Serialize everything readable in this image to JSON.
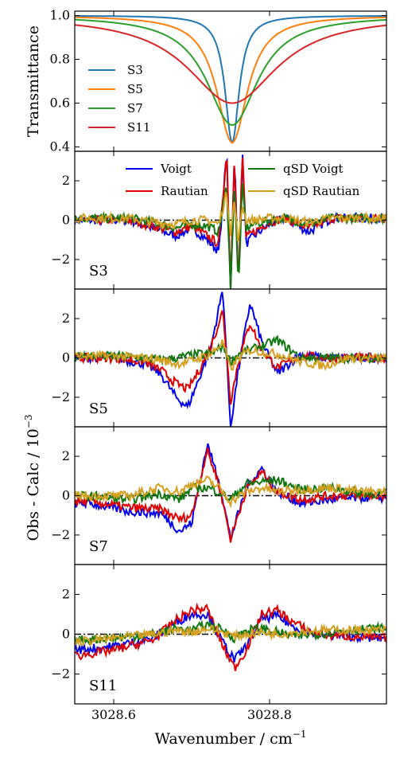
{
  "chart_data": [
    {
      "type": "line",
      "panel": "transmittance",
      "ylabel": "Transmittance",
      "ylim": [
        0.38,
        1.02
      ],
      "xlim": [
        3028.55,
        3028.95
      ],
      "yticks": [
        "0.4",
        "0.6",
        "0.8",
        "1.0"
      ],
      "ytick_values": [
        0.4,
        0.6,
        0.8,
        1.0
      ],
      "legend_position": "left",
      "center": 3028.752,
      "series": [
        {
          "name": "S3",
          "color": "#1f77b4",
          "min_transmittance": 0.42,
          "width": 0.011
        },
        {
          "name": "S5",
          "color": "#ff7f0e",
          "min_transmittance": 0.42,
          "width": 0.024
        },
        {
          "name": "S7",
          "color": "#2ca02c",
          "min_transmittance": 0.5,
          "width": 0.04
        },
        {
          "name": "S11",
          "color": "#d62728",
          "min_transmittance": 0.6,
          "width": 0.07
        }
      ]
    },
    {
      "type": "line",
      "panel": "S3",
      "label": "S3",
      "ylim": [
        -3.5,
        3.5
      ],
      "yticks": [
        "2",
        "0",
        "−2"
      ],
      "ytick_values": [
        2,
        0,
        -2
      ],
      "legend_position": "top",
      "series": [
        {
          "name": "Voigt",
          "color": "#0000ee",
          "x": [
            3028.62,
            3028.65,
            3028.68,
            3028.7,
            3028.72,
            3028.735,
            3028.745,
            3028.75,
            3028.755,
            3028.76,
            3028.765,
            3028.77,
            3028.78,
            3028.8,
            3028.82,
            3028.85,
            3028.88
          ],
          "values": [
            0.0,
            -0.4,
            -0.8,
            -0.4,
            -1.0,
            -1.6,
            3.5,
            -3.5,
            3.5,
            -3.5,
            3.5,
            -1.2,
            -0.8,
            -0.2,
            0.1,
            -0.6,
            0.1
          ]
        },
        {
          "name": "Rautian",
          "color": "#e00000",
          "x": [
            3028.62,
            3028.65,
            3028.68,
            3028.7,
            3028.72,
            3028.735,
            3028.745,
            3028.75,
            3028.755,
            3028.76,
            3028.765,
            3028.77,
            3028.78,
            3028.8,
            3028.82,
            3028.85,
            3028.88
          ],
          "values": [
            0.0,
            -0.3,
            -0.6,
            -0.3,
            -0.8,
            -1.2,
            3.5,
            -3.5,
            3.5,
            -3.5,
            3.5,
            -0.9,
            -0.6,
            -0.1,
            0.1,
            -0.4,
            0.1
          ]
        },
        {
          "name": "qSD Voigt",
          "color": "#117711",
          "x": [
            3028.62,
            3028.65,
            3028.68,
            3028.7,
            3028.72,
            3028.735,
            3028.745,
            3028.75,
            3028.755,
            3028.76,
            3028.765,
            3028.77,
            3028.78,
            3028.8,
            3028.82,
            3028.85,
            3028.88
          ],
          "values": [
            0.1,
            -0.1,
            -0.4,
            -0.2,
            -0.3,
            -0.6,
            1.8,
            -3.5,
            2.0,
            -3.5,
            1.8,
            -0.4,
            -0.2,
            0.0,
            0.1,
            -0.2,
            0.1
          ]
        },
        {
          "name": "qSD Rautian",
          "color": "#d4a020",
          "x": [
            3028.62,
            3028.65,
            3028.68,
            3028.7,
            3028.72,
            3028.735,
            3028.745,
            3028.75,
            3028.755,
            3028.76,
            3028.765,
            3028.77,
            3028.78,
            3028.8,
            3028.82,
            3028.85,
            3028.88
          ],
          "values": [
            0.1,
            -0.1,
            -0.2,
            0.0,
            0.0,
            -0.2,
            1.4,
            -0.6,
            1.0,
            -1.2,
            0.8,
            0.0,
            0.0,
            0.1,
            0.1,
            -0.1,
            0.1
          ]
        }
      ]
    },
    {
      "type": "line",
      "panel": "S5",
      "label": "S5",
      "ylim": [
        -3.5,
        3.5
      ],
      "yticks": [
        "2",
        "0",
        "−2"
      ],
      "ytick_values": [
        2,
        0,
        -2
      ],
      "series": [
        {
          "name": "Voigt",
          "color": "#0000ee",
          "x": [
            3028.6,
            3028.64,
            3028.66,
            3028.68,
            3028.695,
            3028.71,
            3028.725,
            3028.74,
            3028.75,
            3028.76,
            3028.775,
            3028.79,
            3028.81,
            3028.84,
            3028.87,
            3028.9
          ],
          "values": [
            0.0,
            -0.3,
            -0.8,
            -2.0,
            -2.5,
            -1.0,
            0.6,
            3.5,
            -3.5,
            -0.6,
            2.8,
            0.8,
            -0.8,
            0.2,
            0.0,
            0.0
          ]
        },
        {
          "name": "Rautian",
          "color": "#e00000",
          "x": [
            3028.6,
            3028.64,
            3028.66,
            3028.68,
            3028.695,
            3028.71,
            3028.725,
            3028.74,
            3028.75,
            3028.76,
            3028.775,
            3028.79,
            3028.81,
            3028.84,
            3028.87,
            3028.9
          ],
          "values": [
            0.0,
            -0.2,
            -0.6,
            -1.3,
            -1.6,
            -0.6,
            0.6,
            2.4,
            -2.2,
            -0.2,
            1.8,
            0.4,
            -0.5,
            0.1,
            0.0,
            0.0
          ]
        },
        {
          "name": "qSD Voigt",
          "color": "#117711",
          "x": [
            3028.6,
            3028.64,
            3028.66,
            3028.68,
            3028.695,
            3028.71,
            3028.725,
            3028.74,
            3028.75,
            3028.76,
            3028.775,
            3028.79,
            3028.81,
            3028.84,
            3028.87,
            3028.9
          ],
          "values": [
            0.1,
            0.0,
            -0.1,
            0.0,
            0.1,
            0.2,
            0.2,
            0.6,
            -0.2,
            0.2,
            0.4,
            0.6,
            0.9,
            0.0,
            0.0,
            0.0
          ]
        },
        {
          "name": "qSD Rautian",
          "color": "#d4a020",
          "x": [
            3028.6,
            3028.64,
            3028.66,
            3028.68,
            3028.695,
            3028.71,
            3028.725,
            3028.74,
            3028.75,
            3028.76,
            3028.775,
            3028.79,
            3028.81,
            3028.84,
            3028.87,
            3028.9
          ],
          "values": [
            0.1,
            0.0,
            -0.1,
            -0.3,
            -0.2,
            0.0,
            0.2,
            0.8,
            -0.6,
            0.0,
            0.4,
            0.3,
            0.2,
            -0.2,
            -0.4,
            0.0
          ]
        }
      ]
    },
    {
      "type": "line",
      "panel": "S7",
      "label": "S7",
      "ylim": [
        -3.5,
        3.5
      ],
      "yticks": [
        "2",
        "0",
        "−2"
      ],
      "ytick_values": [
        2,
        0,
        -2
      ],
      "series": [
        {
          "name": "Voigt",
          "color": "#0000ee",
          "x": [
            3028.57,
            3028.62,
            3028.66,
            3028.685,
            3028.7,
            3028.72,
            3028.735,
            3028.75,
            3028.77,
            3028.79,
            3028.81,
            3028.84,
            3028.88,
            3028.92
          ],
          "values": [
            -0.4,
            -0.8,
            -0.9,
            -1.8,
            -1.4,
            2.6,
            0.8,
            -2.2,
            0.4,
            1.4,
            0.2,
            -0.4,
            -0.2,
            -0.1
          ]
        },
        {
          "name": "Rautian",
          "color": "#e00000",
          "x": [
            3028.57,
            3028.62,
            3028.66,
            3028.685,
            3028.7,
            3028.72,
            3028.735,
            3028.75,
            3028.77,
            3028.79,
            3028.81,
            3028.84,
            3028.88,
            3028.92
          ],
          "values": [
            -0.3,
            -0.6,
            -0.7,
            -1.2,
            -1.0,
            2.3,
            0.6,
            -2.2,
            0.3,
            1.2,
            0.2,
            -0.2,
            0.0,
            0.0
          ]
        },
        {
          "name": "qSD Voigt",
          "color": "#117711",
          "x": [
            3028.57,
            3028.62,
            3028.66,
            3028.685,
            3028.7,
            3028.72,
            3028.735,
            3028.75,
            3028.77,
            3028.79,
            3028.81,
            3028.84,
            3028.88,
            3028.92
          ],
          "values": [
            0.0,
            -0.2,
            0.1,
            -0.2,
            0.4,
            0.4,
            0.2,
            -0.2,
            0.6,
            0.7,
            0.8,
            0.3,
            0.4,
            0.1
          ]
        },
        {
          "name": "qSD Rautian",
          "color": "#d4a020",
          "x": [
            3028.57,
            3028.62,
            3028.66,
            3028.685,
            3028.7,
            3028.72,
            3028.735,
            3028.75,
            3028.77,
            3028.79,
            3028.81,
            3028.84,
            3028.88,
            3028.92
          ],
          "values": [
            0.0,
            0.0,
            0.4,
            0.2,
            0.6,
            0.8,
            0.4,
            -0.3,
            0.2,
            0.4,
            0.2,
            0.3,
            0.4,
            0.2
          ]
        }
      ]
    },
    {
      "type": "line",
      "panel": "S11",
      "label": "S11",
      "ylim": [
        -3.5,
        3.5
      ],
      "yticks": [
        "2",
        "0",
        "−2"
      ],
      "ytick_values": [
        2,
        0,
        -2
      ],
      "series": [
        {
          "name": "Voigt",
          "color": "#0000ee",
          "x": [
            3028.55,
            3028.6,
            3028.65,
            3028.68,
            3028.7,
            3028.72,
            3028.74,
            3028.755,
            3028.77,
            3028.79,
            3028.81,
            3028.83,
            3028.86,
            3028.9,
            3028.94
          ],
          "values": [
            -0.8,
            -0.6,
            -0.2,
            0.6,
            1.0,
            1.0,
            -0.4,
            -1.3,
            -0.6,
            0.8,
            0.9,
            0.4,
            0.0,
            -0.1,
            -0.2
          ]
        },
        {
          "name": "Rautian",
          "color": "#e00000",
          "x": [
            3028.55,
            3028.6,
            3028.65,
            3028.68,
            3028.7,
            3028.72,
            3028.74,
            3028.755,
            3028.77,
            3028.79,
            3028.81,
            3028.83,
            3028.86,
            3028.9,
            3028.94
          ],
          "values": [
            -1.1,
            -0.8,
            -0.3,
            0.7,
            1.2,
            1.3,
            -0.6,
            -1.7,
            -0.8,
            1.0,
            1.2,
            0.6,
            0.0,
            -0.1,
            -0.2
          ]
        },
        {
          "name": "qSD Voigt",
          "color": "#117711",
          "x": [
            3028.55,
            3028.6,
            3028.65,
            3028.68,
            3028.7,
            3028.72,
            3028.74,
            3028.755,
            3028.77,
            3028.79,
            3028.81,
            3028.83,
            3028.86,
            3028.9,
            3028.94
          ],
          "values": [
            -0.3,
            -0.2,
            0.0,
            0.3,
            0.2,
            0.5,
            0.2,
            -0.2,
            0.2,
            0.3,
            0.1,
            -0.1,
            0.0,
            0.2,
            0.3
          ]
        },
        {
          "name": "qSD Rautian",
          "color": "#d4a020",
          "x": [
            3028.55,
            3028.6,
            3028.65,
            3028.68,
            3028.7,
            3028.72,
            3028.74,
            3028.755,
            3028.77,
            3028.79,
            3028.81,
            3028.83,
            3028.86,
            3028.9,
            3028.94
          ],
          "values": [
            -0.4,
            -0.2,
            0.0,
            0.2,
            0.1,
            0.3,
            0.1,
            -0.1,
            0.0,
            0.1,
            0.0,
            0.1,
            0.2,
            0.2,
            0.2
          ]
        }
      ]
    }
  ],
  "residual_ylabel": "Obs - Calc / 10",
  "residual_ylabel_exp": "−3",
  "xlabel": "Wavenumber / cm",
  "xlabel_exp": "−1",
  "xticks": [
    "3028.6",
    "3028.8"
  ],
  "xtick_values": [
    3028.6,
    3028.8
  ],
  "legend_residual": [
    "Voigt",
    "Rautian",
    "qSD Voigt",
    "qSD Rautian"
  ]
}
